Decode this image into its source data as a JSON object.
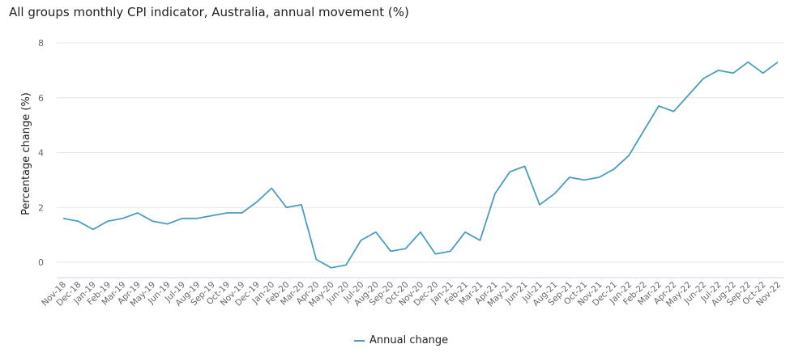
{
  "chart_data": {
    "type": "line",
    "title": "All groups monthly CPI indicator, Australia, annual movement (%)",
    "xlabel": "",
    "ylabel": "Percentage change (%)",
    "ylim": [
      -0.5,
      8
    ],
    "yticks": [
      0,
      2,
      4,
      6,
      8
    ],
    "grid": true,
    "legend_position": "bottom-center",
    "categories": [
      "Nov-18",
      "Dec-18",
      "Jan-19",
      "Feb-19",
      "Mar-19",
      "Apr-19",
      "May-19",
      "Jun-19",
      "Jul-19",
      "Aug-19",
      "Sep-19",
      "Oct-19",
      "Nov-19",
      "Dec-19",
      "Jan-20",
      "Feb-20",
      "Mar-20",
      "Apr-20",
      "May-20",
      "Jun-20",
      "Jul-20",
      "Aug-20",
      "Sep-20",
      "Oct-20",
      "Nov-20",
      "Dec-20",
      "Jan-21",
      "Feb-21",
      "Mar-21",
      "Apr-21",
      "May-21",
      "Jun-21",
      "Jul-21",
      "Aug-21",
      "Sep-21",
      "Oct-21",
      "Nov-21",
      "Dec-21",
      "Jan-22",
      "Feb-22",
      "Mar-22",
      "Apr-22",
      "May-22",
      "Jun-22",
      "Jul-22",
      "Aug-22",
      "Sep-22",
      "Oct-22",
      "Nov-22"
    ],
    "series": [
      {
        "name": "Annual change",
        "color": "#4a9cc0",
        "values": [
          1.6,
          1.5,
          1.2,
          1.5,
          1.6,
          1.8,
          1.5,
          1.4,
          1.6,
          1.6,
          1.7,
          1.8,
          1.8,
          2.2,
          2.7,
          2.0,
          2.1,
          0.1,
          -0.2,
          -0.1,
          0.8,
          1.1,
          0.4,
          0.5,
          1.1,
          0.3,
          0.4,
          1.1,
          0.8,
          2.5,
          3.3,
          3.5,
          2.1,
          2.5,
          3.1,
          3.0,
          3.1,
          3.4,
          3.9,
          4.8,
          5.7,
          5.5,
          6.1,
          6.7,
          7.0,
          6.9,
          7.3,
          6.9,
          7.3
        ]
      }
    ]
  },
  "legend": {
    "label": "Annual change"
  }
}
